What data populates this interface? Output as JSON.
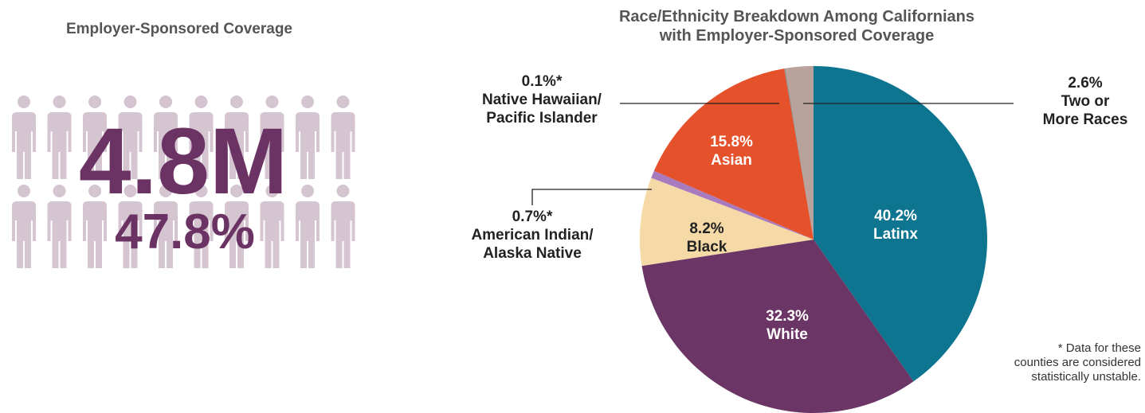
{
  "infographic": {
    "title": "Employer-Sponsored Coverage",
    "count": "4.8M",
    "share": "47.8%"
  },
  "chart_data": {
    "type": "pie",
    "title": "Race/Ethnicity Breakdown Among Californians\nwith Employer-Sponsored Coverage",
    "categories": [
      "Latinx",
      "White",
      "Black",
      "American Indian/\nAlaska Native",
      "Asian",
      "Native Hawaiian/\nPacific Islander",
      "Two or\nMore Races"
    ],
    "values": [
      40.2,
      32.3,
      8.2,
      0.7,
      15.8,
      0.1,
      2.6
    ],
    "value_labels": [
      "40.2%",
      "32.3%",
      "8.2%",
      "0.7%*",
      "15.8%",
      "0.1%*",
      "2.6%"
    ],
    "colors": [
      "#0e7590",
      "#6b3566",
      "#f5d9a6",
      "#a77bbd",
      "#e4512a",
      "#8a8a8a",
      "#b9a29b"
    ],
    "footnote": "* Data for these\ncounties are considered\nstatistically unstable."
  }
}
